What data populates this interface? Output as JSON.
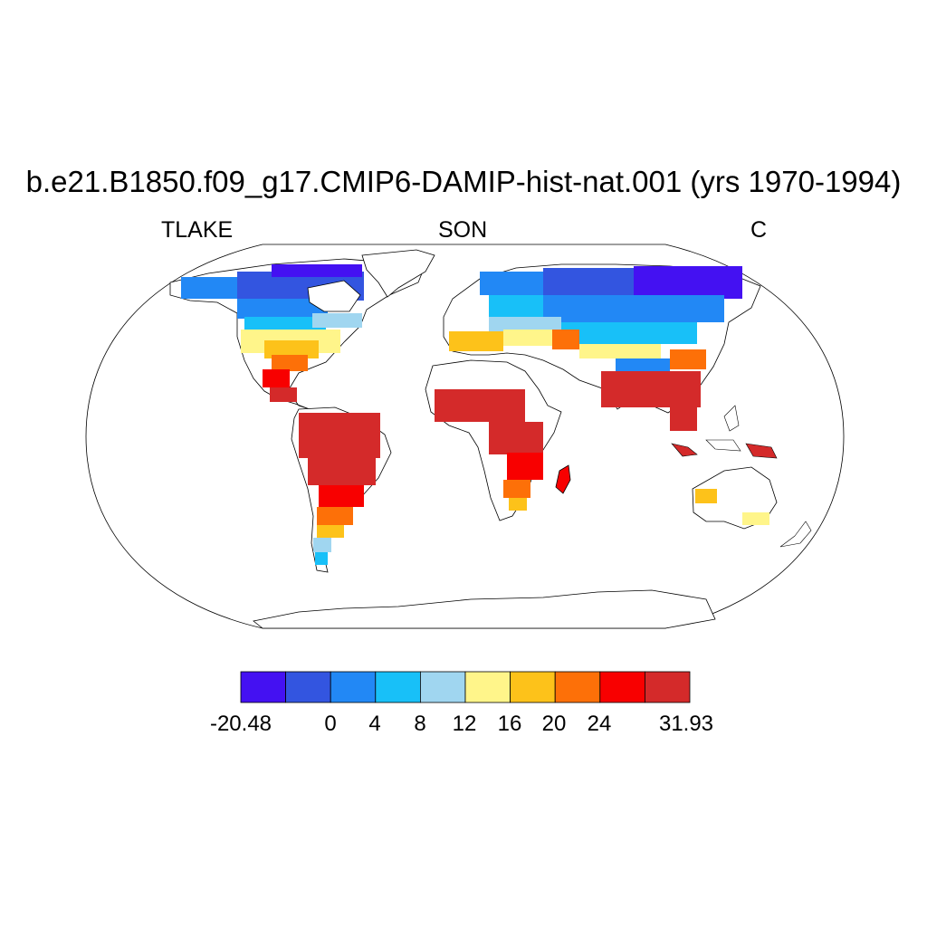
{
  "title": "b.e21.B1850.f09_g17.CMIP6-DAMIP-hist-nat.001 (yrs 1970-1994)",
  "left_label": "TLAKE",
  "center_label": "SON",
  "right_label": "C",
  "colorbar": {
    "colors": [
      "#4411f2",
      "#3355e0",
      "#2288f5",
      "#18c0f8",
      "#a0d6f0",
      "#fff58a",
      "#fdc21a",
      "#fd7008",
      "#f80000",
      "#d42a2a"
    ],
    "labels": [
      "-20.48",
      "0",
      "4",
      "8",
      "12",
      "16",
      "20",
      "24",
      "31.93"
    ]
  }
}
